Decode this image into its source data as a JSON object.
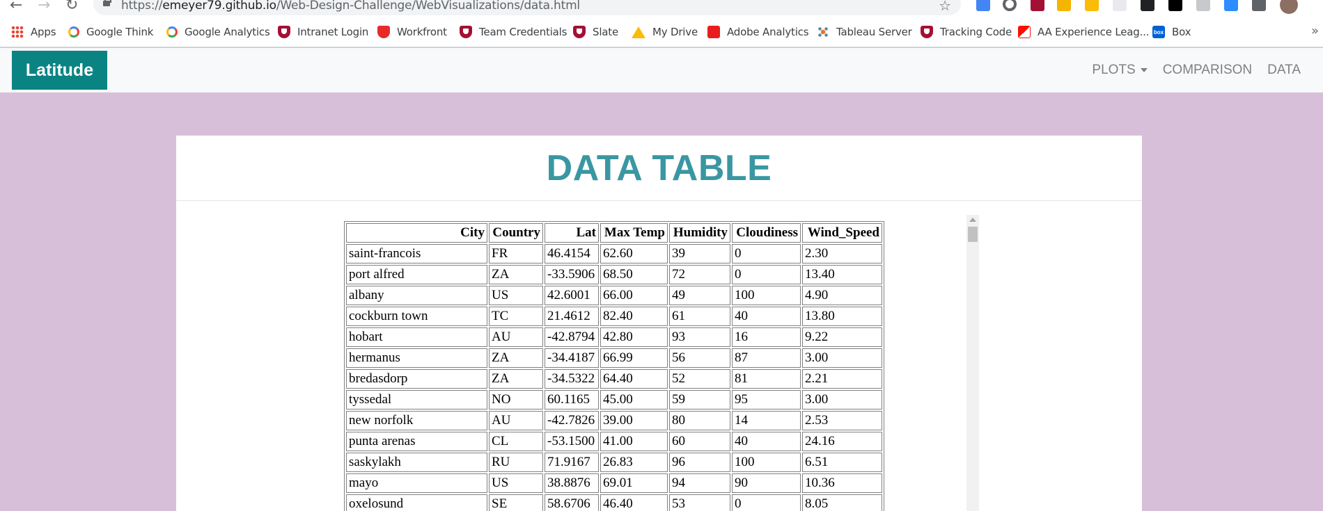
{
  "browser": {
    "url_prefix": "https://",
    "url_host": "emeyer79.github.io",
    "url_path": "/Web-Design-Challenge/WebVisualizations/data.html",
    "bookmarks": [
      {
        "label": "Apps",
        "icon": "apps-grid-icon"
      },
      {
        "label": "Google Think",
        "icon": "google-icon"
      },
      {
        "label": "Google Analytics",
        "icon": "google-icon"
      },
      {
        "label": "Intranet Login",
        "icon": "harvard-shield-icon"
      },
      {
        "label": "Workfront",
        "icon": "workfront-icon"
      },
      {
        "label": "Team Credentials",
        "icon": "harvard-shield-icon"
      },
      {
        "label": "Slate",
        "icon": "harvard-shield-icon"
      },
      {
        "label": "My Drive",
        "icon": "google-drive-icon"
      },
      {
        "label": "Adobe Analytics",
        "icon": "adobe-icon"
      },
      {
        "label": "Tableau Server",
        "icon": "tableau-icon"
      },
      {
        "label": "Tracking Code",
        "icon": "harvard-shield-icon"
      },
      {
        "label": "AA Experience Leag...",
        "icon": "adobe-experience-icon"
      },
      {
        "label": "Box",
        "icon": "box-icon"
      }
    ],
    "more": "»"
  },
  "navbar": {
    "brand": "Latitude",
    "links": {
      "plots": "PLOTS",
      "comparison": "COMPARISON",
      "data": "DATA"
    }
  },
  "page": {
    "title": "DATA TABLE"
  },
  "table": {
    "headers": [
      "City",
      "Country",
      "Lat",
      "Max Temp",
      "Humidity",
      "Cloudiness",
      "Wind_Speed"
    ],
    "rows": [
      [
        "saint-francois",
        "FR",
        "46.4154",
        "62.60",
        "39",
        "0",
        "2.30"
      ],
      [
        "port alfred",
        "ZA",
        "-33.5906",
        "68.50",
        "72",
        "0",
        "13.40"
      ],
      [
        "albany",
        "US",
        "42.6001",
        "66.00",
        "49",
        "100",
        "4.90"
      ],
      [
        "cockburn town",
        "TC",
        "21.4612",
        "82.40",
        "61",
        "40",
        "13.80"
      ],
      [
        "hobart",
        "AU",
        "-42.8794",
        "42.80",
        "93",
        "16",
        "9.22"
      ],
      [
        "hermanus",
        "ZA",
        "-34.4187",
        "66.99",
        "56",
        "87",
        "3.00"
      ],
      [
        "bredasdorp",
        "ZA",
        "-34.5322",
        "64.40",
        "52",
        "81",
        "2.21"
      ],
      [
        "tyssedal",
        "NO",
        "60.1165",
        "45.00",
        "59",
        "95",
        "3.00"
      ],
      [
        "new norfolk",
        "AU",
        "-42.7826",
        "39.00",
        "80",
        "14",
        "2.53"
      ],
      [
        "punta arenas",
        "CL",
        "-53.1500",
        "41.00",
        "60",
        "40",
        "24.16"
      ],
      [
        "saskylakh",
        "RU",
        "71.9167",
        "26.83",
        "96",
        "100",
        "6.51"
      ],
      [
        "mayo",
        "US",
        "38.8876",
        "69.01",
        "94",
        "90",
        "10.36"
      ],
      [
        "oxelosund",
        "SE",
        "58.6706",
        "46.40",
        "53",
        "0",
        "8.05"
      ]
    ]
  }
}
